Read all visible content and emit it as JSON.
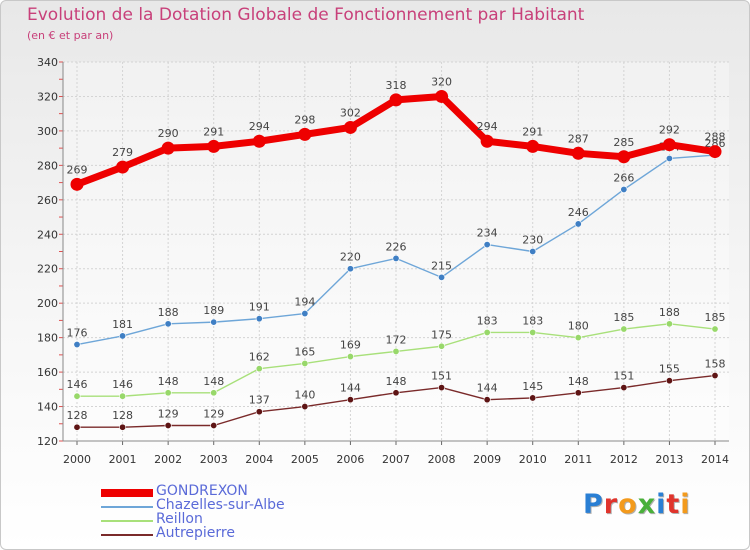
{
  "header": {
    "title": "Evolution de la Dotation Globale de Fonctionnement par Habitant",
    "subtitle": "(en € et par an)"
  },
  "logo": {
    "text": "Proxiti",
    "letter_colors": [
      "#2a7fd4",
      "#e0342c",
      "#f39a1c",
      "#49b03a",
      "#2a7fd4",
      "#e0342c",
      "#f39a1c"
    ]
  },
  "chart_data": {
    "type": "line",
    "x": [
      2000,
      2001,
      2002,
      2003,
      2004,
      2005,
      2006,
      2007,
      2008,
      2009,
      2010,
      2011,
      2012,
      2013,
      2014
    ],
    "ylim": [
      120,
      340
    ],
    "yticks": [
      120,
      140,
      160,
      180,
      200,
      220,
      240,
      260,
      280,
      300,
      320,
      340
    ],
    "grid": true,
    "legend": "bottom-left",
    "series": [
      {
        "name": "GONDREXON",
        "color": "#ee0000",
        "values": [
          269,
          279,
          290,
          291,
          294,
          298,
          302,
          318,
          320,
          294,
          291,
          287,
          285,
          292,
          288
        ]
      },
      {
        "name": "Chazelles-sur-Albe",
        "color": "#6ea6d8",
        "marker": "#3f7fc4",
        "values": [
          176,
          181,
          188,
          189,
          191,
          194,
          220,
          226,
          215,
          234,
          230,
          246,
          266,
          284,
          286
        ]
      },
      {
        "name": "Reillon",
        "color": "#a8e07a",
        "marker": "#98d86a",
        "values": [
          146,
          146,
          148,
          148,
          162,
          165,
          169,
          172,
          175,
          183,
          183,
          180,
          185,
          188,
          185
        ]
      },
      {
        "name": "Autrepierre",
        "color": "#7a2a2a",
        "marker": "#5e1414",
        "values": [
          128,
          128,
          129,
          129,
          137,
          140,
          144,
          148,
          151,
          144,
          145,
          148,
          151,
          155,
          158
        ]
      }
    ]
  }
}
